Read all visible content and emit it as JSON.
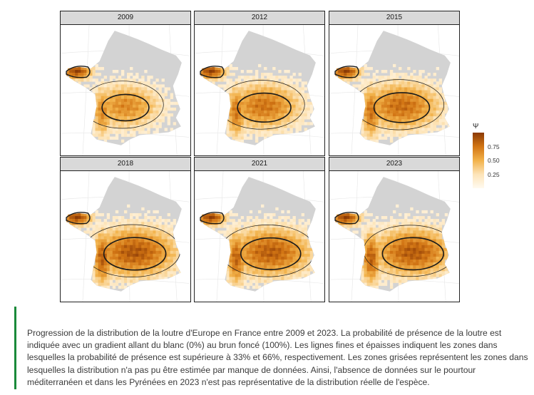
{
  "chart_data": {
    "type": "heatmap",
    "subject": "Loutre d'Europe - probabilité de présence",
    "panels": [
      {
        "year": "2009",
        "extent": 0.55,
        "core": 0.35,
        "east_shift": 0.0
      },
      {
        "year": "2012",
        "extent": 0.65,
        "core": 0.5,
        "east_shift": 0.05
      },
      {
        "year": "2015",
        "extent": 0.72,
        "core": 0.55,
        "east_shift": 0.08
      },
      {
        "year": "2018",
        "extent": 0.85,
        "core": 0.7,
        "east_shift": 0.1
      },
      {
        "year": "2021",
        "extent": 0.82,
        "core": 0.65,
        "east_shift": 0.12
      },
      {
        "year": "2023",
        "extent": 0.78,
        "core": 0.68,
        "east_shift": 0.2
      }
    ],
    "legend": {
      "title": "Ψ",
      "ticks": [
        {
          "value": 0.75,
          "label": "0.75"
        },
        {
          "value": 0.5,
          "label": "0.50"
        },
        {
          "value": 0.25,
          "label": "0.25"
        }
      ],
      "range": [
        0,
        1
      ],
      "low_color": "#fffaf0",
      "high_color": "#8b3a05"
    },
    "colors": {
      "no_data": "#d3d3d3",
      "contour": "#1a1a1a",
      "graticule": "#e6e6e6"
    }
  },
  "caption": "Progression de la distribution de la loutre d'Europe en France entre 2009 et 2023. La probabilité de présence de la loutre est indiquée avec un gradient allant du blanc (0%) au brun foncé (100%). Les lignes fines et épaisses indiquent les zones dans lesquelles la probabilité de présence est supérieure à 33% et 66%, respectivement. Les zones grisées représentent les zones dans lesquelles la distribution n'a pas pu être estimée par manque de données. Ainsi, l'absence de données sur le pourtour méditerranéen et dans les Pyrénées en 2023 n'est pas représentative de la distribution réelle de l'espèce."
}
